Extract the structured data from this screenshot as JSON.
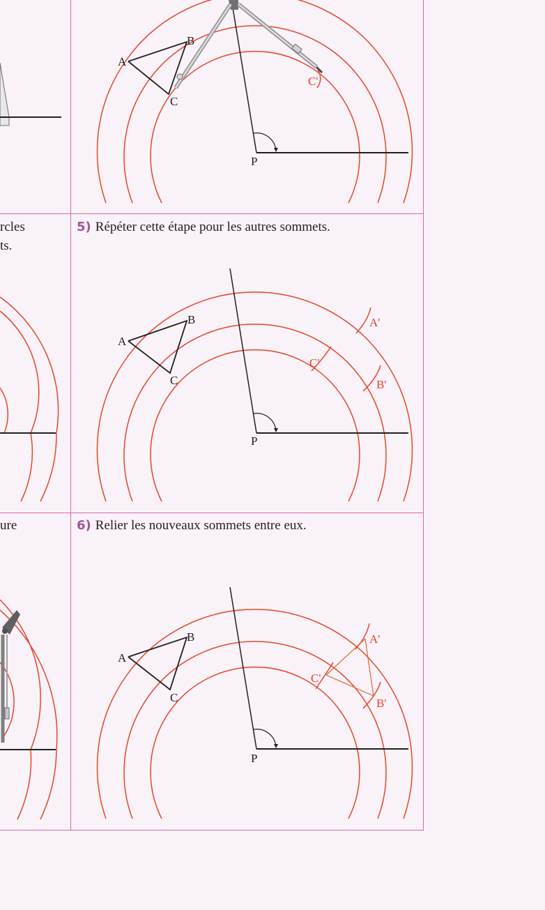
{
  "steps": {
    "s5": {
      "number": "5)",
      "text": "Répéter cette étape pour les autres sommets."
    },
    "s6": {
      "number": "6)",
      "text": "Relier les nouveaux sommets entre eux."
    }
  },
  "left_fragments": {
    "row2_line1": "rcles",
    "row2_line2": "ts.",
    "row3_line1": "ure"
  },
  "labels": {
    "A": "A",
    "B": "B",
    "C": "C",
    "P": "P",
    "A_prime": "A'",
    "B_prime": "B'",
    "C_prime": "C'"
  },
  "colors": {
    "arc": "#e2472c",
    "ink": "#231f20",
    "border": "#d46aa8",
    "step_number": "#a2559c",
    "background": "#f9f2f8",
    "tool_grey": "#7d7d7d"
  }
}
